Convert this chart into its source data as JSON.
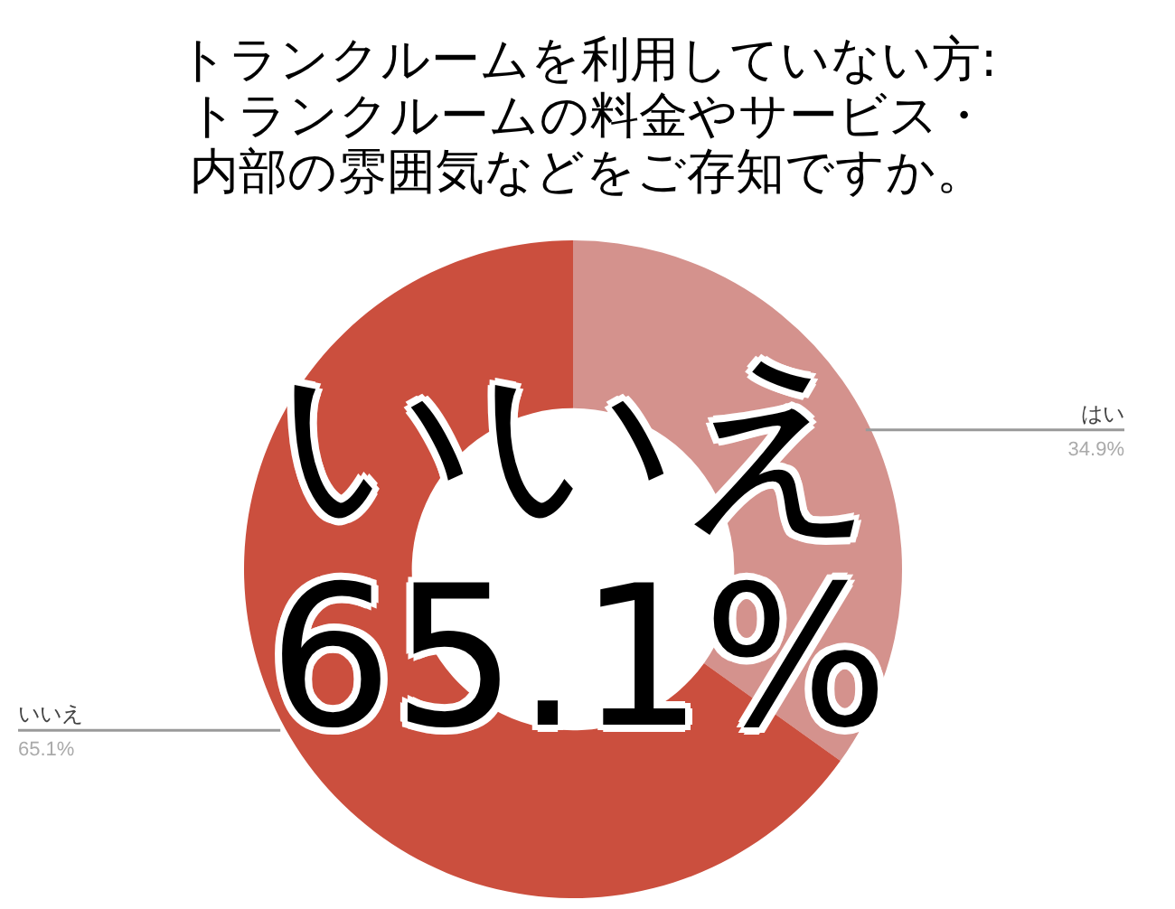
{
  "chart_data": {
    "type": "donut",
    "title": "トランクルームを利用していない方:トランクルームの料金やサービス・内部の雰囲気などをご存知ですか。",
    "categories": [
      "はい",
      "いいえ"
    ],
    "values": [
      34.9,
      65.1
    ],
    "colors": [
      "#d4928d",
      "#cb4f3e"
    ],
    "value_labels": [
      "34.9%",
      "65.1%"
    ],
    "annotations": [
      "いいえ\n65.1%"
    ],
    "legend": false
  }
}
